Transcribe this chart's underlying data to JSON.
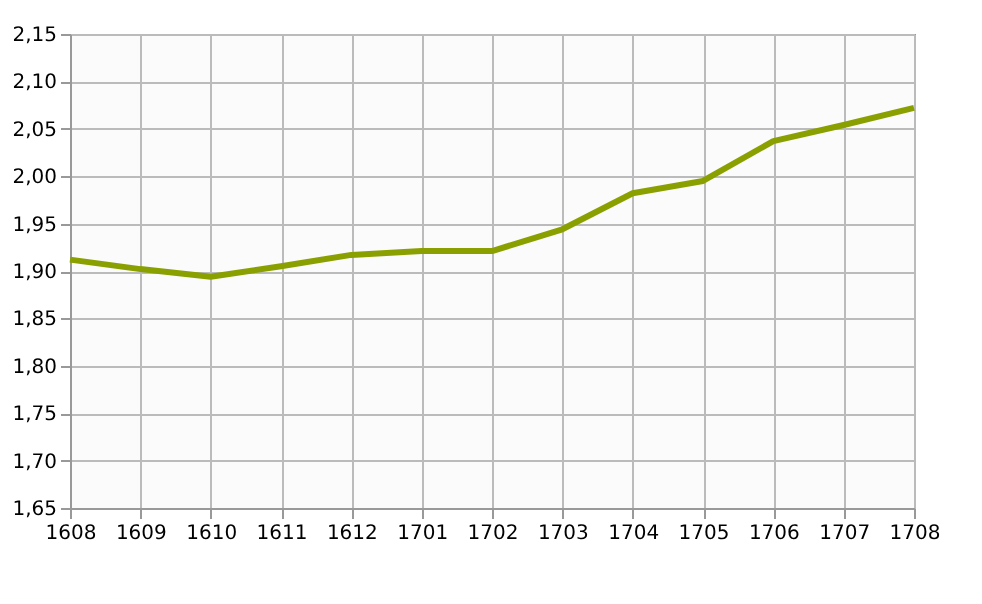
{
  "chart_data": {
    "type": "line",
    "categories": [
      "1608",
      "1609",
      "1610",
      "1611",
      "1612",
      "1701",
      "1702",
      "1703",
      "1704",
      "1705",
      "1706",
      "1707",
      "1708"
    ],
    "series": [
      {
        "color": "#8aa000",
        "values": [
          1.912,
          1.902,
          1.894,
          1.905,
          1.917,
          1.921,
          1.921,
          1.944,
          1.982,
          1.995,
          2.037,
          2.054,
          2.072
        ]
      }
    ],
    "ylim": [
      1.65,
      2.15
    ],
    "yticks": [
      {
        "value": 1.65,
        "label": "1,65"
      },
      {
        "value": 1.7,
        "label": "1,70"
      },
      {
        "value": 1.75,
        "label": "1,75"
      },
      {
        "value": 1.8,
        "label": "1,80"
      },
      {
        "value": 1.85,
        "label": "1,85"
      },
      {
        "value": 1.9,
        "label": "1,90"
      },
      {
        "value": 1.95,
        "label": "1,95"
      },
      {
        "value": 2.0,
        "label": "2,00"
      },
      {
        "value": 2.05,
        "label": "2,05"
      },
      {
        "value": 2.1,
        "label": "2,10"
      },
      {
        "value": 2.15,
        "label": "2,15"
      }
    ],
    "grid": true,
    "marker": "none",
    "line_style": "solid"
  }
}
